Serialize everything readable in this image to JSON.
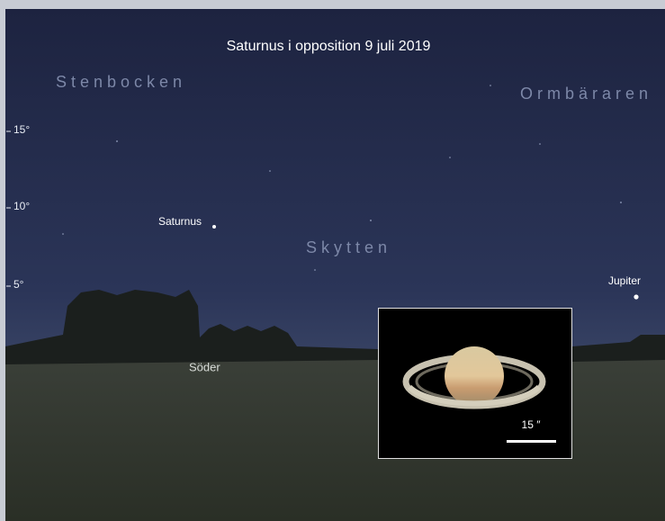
{
  "title": "Saturnus i opposition 9 juli 2019",
  "constellations": [
    "Stenbocken",
    "Ormbäraren",
    "Skytten"
  ],
  "altitude_ticks": [
    "15°",
    "10°",
    "5°"
  ],
  "planets": [
    "Saturnus",
    "Jupiter"
  ],
  "direction": "Söder",
  "inset": {
    "scale": "15 ″"
  }
}
